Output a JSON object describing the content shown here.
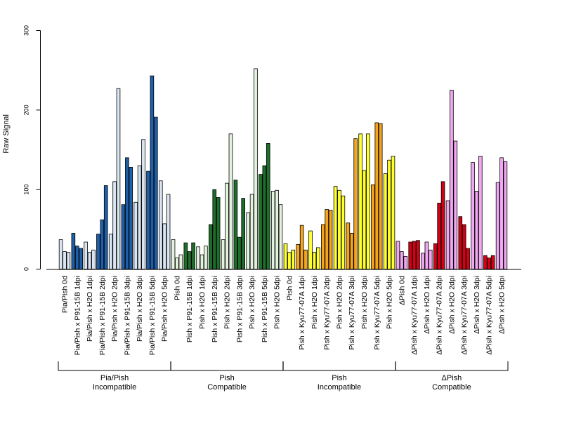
{
  "chart_data": {
    "type": "bar",
    "ylabel": "Raw Signal",
    "ylim": [
      0,
      300
    ],
    "yticks": [
      0,
      100,
      200,
      300
    ],
    "colors": {
      "pia_light": "#d9e6f2",
      "pia_dark": "#1f5fa8",
      "pish_light": "#e4f3e0",
      "pish_dark": "#1f6f2c",
      "yellow": "#ffff2e",
      "orange": "#f5a51c",
      "pink": "#f0a8f0",
      "red": "#d40016"
    },
    "categories": [
      "Pia/Pish 0d",
      "Pia/Pish x P91-15B 1dpi",
      "Pia/Pish x H2O 1dpi",
      "Pia/Pish x P91-15B 2dpi",
      "Pia/Pish x H2O 2dpi",
      "Pia/Pish x P91-15B 3dpi",
      "Pia/Pish x H2O 3dpi",
      "Pia/Pish x P91-15B 5dpi",
      "Pia/Pish x H2O 5dpi",
      "Pish 0d",
      "Pish x P91-15B 1dpi",
      "Pish x H2O 1dpi",
      "Pish x P91-15B 2dpi",
      "Pish x H2O 2dpi",
      "Pish x P91-15B 3dpi",
      "Pish x H2O 3dpi",
      "Pish x P91-15B 5dpi",
      "Pish x H2O 5dpi",
      "Pish 0d",
      "Pish x Kyu77-07A 1dpi",
      "Pish x H2O 1dpi",
      "Pish x Kyu77-07A 2dpi",
      "Pish x H2O 2dpi",
      "Pish x Kyu77-07A 3dpi",
      "Pish x H2O 3dpi",
      "Pish x Kyu77-07A 5dpi",
      "Pish x H2O 5dpi",
      "ΔPish 0d",
      "ΔPish x Kyu77-07A 1dpi",
      "ΔPish x H2O 1dpi",
      "ΔPish x Kyu77-07A 2dpi",
      "ΔPish x H2O 2dpi",
      "ΔPish x Kyu77-07A 3dpi",
      "ΔPish x H2O 3dpi",
      "ΔPish x Kyu77-07A 5dpi",
      "ΔPish x H2O 5dpi"
    ],
    "bar_colors": [
      "pia_light",
      "pia_dark",
      "pia_light",
      "pia_dark",
      "pia_light",
      "pia_dark",
      "pia_light",
      "pia_dark",
      "pia_light",
      "pish_light",
      "pish_dark",
      "pish_light",
      "pish_dark",
      "pish_light",
      "pish_dark",
      "pish_light",
      "pish_dark",
      "pish_light",
      "yellow",
      "orange",
      "yellow",
      "orange",
      "yellow",
      "orange",
      "yellow",
      "orange",
      "yellow",
      "pink",
      "red",
      "pink",
      "red",
      "pink",
      "red",
      "pink",
      "red",
      "pink"
    ],
    "values": [
      [
        37,
        22,
        21
      ],
      [
        45,
        29,
        26
      ],
      [
        34,
        21,
        24
      ],
      [
        44,
        62,
        105
      ],
      [
        44,
        110,
        227
      ],
      [
        81,
        140,
        128
      ],
      [
        84,
        130,
        163
      ],
      [
        123,
        243,
        191
      ],
      [
        111,
        57,
        94
      ],
      [
        37,
        14,
        18
      ],
      [
        33,
        22,
        33
      ],
      [
        28,
        18,
        29
      ],
      [
        56,
        100,
        90
      ],
      [
        37,
        108,
        170
      ],
      [
        112,
        40,
        89
      ],
      [
        71,
        94,
        252
      ],
      [
        119,
        130,
        158
      ],
      [
        98,
        99,
        81
      ],
      [
        32,
        21,
        24
      ],
      [
        31,
        55,
        24
      ],
      [
        48,
        21,
        27
      ],
      [
        56,
        75,
        74
      ],
      [
        104,
        99,
        92
      ],
      [
        58,
        45,
        164
      ],
      [
        170,
        124,
        170
      ],
      [
        106,
        184,
        183
      ],
      [
        120,
        137,
        142
      ],
      [
        35,
        22,
        16
      ],
      [
        34,
        35,
        36
      ],
      [
        20,
        34,
        24
      ],
      [
        32,
        83,
        110
      ],
      [
        86,
        225,
        161
      ],
      [
        66,
        56,
        26
      ],
      [
        134,
        98,
        142
      ],
      [
        17,
        14,
        17
      ],
      [
        109,
        140,
        135
      ]
    ],
    "groups": [
      {
        "line1": "Pia/Pish",
        "line2": "Incompatible",
        "from": 0,
        "to": 8
      },
      {
        "line1": "Pish",
        "line2": "Compatible",
        "from": 9,
        "to": 17
      },
      {
        "line1": "Pish",
        "line2": "Incompatible",
        "from": 18,
        "to": 26
      },
      {
        "line1": "ΔPish",
        "line2": "Compatible",
        "from": 27,
        "to": 35
      }
    ]
  }
}
